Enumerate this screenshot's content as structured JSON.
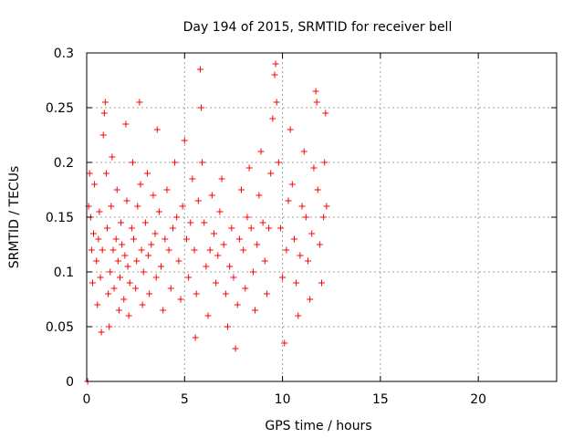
{
  "chart_data": {
    "type": "scatter",
    "title": "Day 194 of 2015, SRMTID for receiver bell",
    "xlabel": "GPS time / hours",
    "ylabel": "SRMTID / TECUs",
    "xlim": [
      0,
      24
    ],
    "ylim": [
      0,
      0.3
    ],
    "xticks": [
      0,
      5,
      10,
      15,
      20
    ],
    "xtick_labels": [
      "0",
      "5",
      "10",
      "15",
      "20"
    ],
    "yticks": [
      0,
      0.05,
      0.1,
      0.15,
      0.2,
      0.25,
      0.3
    ],
    "ytick_labels": [
      "0",
      "0.05",
      "0.1",
      "0.15",
      "0.2",
      "0.25",
      "0.3"
    ],
    "grid": true,
    "marker": "plus",
    "colors": {
      "series": "#ff0000",
      "grid": "#a0a0a0",
      "axis": "#000000"
    },
    "series": [
      {
        "points": [
          [
            0.05,
            0.0
          ],
          [
            0.1,
            0.16
          ],
          [
            0.15,
            0.19
          ],
          [
            0.2,
            0.15
          ],
          [
            0.25,
            0.12
          ],
          [
            0.3,
            0.09
          ],
          [
            0.35,
            0.135
          ],
          [
            0.4,
            0.18
          ],
          [
            0.5,
            0.11
          ],
          [
            0.55,
            0.07
          ],
          [
            0.6,
            0.13
          ],
          [
            0.65,
            0.155
          ],
          [
            0.7,
            0.095
          ],
          [
            0.75,
            0.045
          ],
          [
            0.8,
            0.12
          ],
          [
            0.85,
            0.225
          ],
          [
            0.9,
            0.245
          ],
          [
            0.95,
            0.255
          ],
          [
            1.0,
            0.19
          ],
          [
            1.05,
            0.14
          ],
          [
            1.1,
            0.08
          ],
          [
            1.15,
            0.05
          ],
          [
            1.2,
            0.1
          ],
          [
            1.25,
            0.16
          ],
          [
            1.3,
            0.205
          ],
          [
            1.35,
            0.12
          ],
          [
            1.4,
            0.085
          ],
          [
            1.5,
            0.13
          ],
          [
            1.55,
            0.175
          ],
          [
            1.6,
            0.11
          ],
          [
            1.65,
            0.065
          ],
          [
            1.7,
            0.095
          ],
          [
            1.75,
            0.145
          ],
          [
            1.8,
            0.125
          ],
          [
            1.9,
            0.075
          ],
          [
            1.95,
            0.115
          ],
          [
            2.0,
            0.235
          ],
          [
            2.05,
            0.165
          ],
          [
            2.1,
            0.105
          ],
          [
            2.15,
            0.06
          ],
          [
            2.2,
            0.09
          ],
          [
            2.3,
            0.14
          ],
          [
            2.35,
            0.2
          ],
          [
            2.4,
            0.13
          ],
          [
            2.5,
            0.085
          ],
          [
            2.55,
            0.11
          ],
          [
            2.6,
            0.16
          ],
          [
            2.7,
            0.255
          ],
          [
            2.75,
            0.18
          ],
          [
            2.8,
            0.12
          ],
          [
            2.85,
            0.07
          ],
          [
            2.9,
            0.1
          ],
          [
            3.0,
            0.145
          ],
          [
            3.1,
            0.19
          ],
          [
            3.15,
            0.115
          ],
          [
            3.2,
            0.08
          ],
          [
            3.3,
            0.125
          ],
          [
            3.4,
            0.17
          ],
          [
            3.5,
            0.135
          ],
          [
            3.55,
            0.095
          ],
          [
            3.6,
            0.23
          ],
          [
            3.7,
            0.155
          ],
          [
            3.8,
            0.105
          ],
          [
            3.9,
            0.065
          ],
          [
            4.0,
            0.13
          ],
          [
            4.1,
            0.175
          ],
          [
            4.2,
            0.12
          ],
          [
            4.3,
            0.085
          ],
          [
            4.4,
            0.14
          ],
          [
            4.5,
            0.2
          ],
          [
            4.6,
            0.15
          ],
          [
            4.7,
            0.11
          ],
          [
            4.8,
            0.075
          ],
          [
            4.9,
            0.16
          ],
          [
            5.0,
            0.22
          ],
          [
            5.1,
            0.13
          ],
          [
            5.2,
            0.095
          ],
          [
            5.3,
            0.145
          ],
          [
            5.4,
            0.185
          ],
          [
            5.5,
            0.12
          ],
          [
            5.55,
            0.04
          ],
          [
            5.6,
            0.08
          ],
          [
            5.7,
            0.165
          ],
          [
            5.8,
            0.285
          ],
          [
            5.85,
            0.25
          ],
          [
            5.9,
            0.2
          ],
          [
            6.0,
            0.145
          ],
          [
            6.1,
            0.105
          ],
          [
            6.2,
            0.06
          ],
          [
            6.3,
            0.12
          ],
          [
            6.4,
            0.17
          ],
          [
            6.5,
            0.135
          ],
          [
            6.6,
            0.09
          ],
          [
            6.7,
            0.115
          ],
          [
            6.8,
            0.155
          ],
          [
            6.9,
            0.185
          ],
          [
            7.0,
            0.125
          ],
          [
            7.1,
            0.08
          ],
          [
            7.2,
            0.05
          ],
          [
            7.3,
            0.105
          ],
          [
            7.4,
            0.14
          ],
          [
            7.5,
            0.095
          ],
          [
            7.6,
            0.03
          ],
          [
            7.7,
            0.07
          ],
          [
            7.8,
            0.13
          ],
          [
            7.9,
            0.175
          ],
          [
            8.0,
            0.12
          ],
          [
            8.1,
            0.085
          ],
          [
            8.2,
            0.15
          ],
          [
            8.3,
            0.195
          ],
          [
            8.4,
            0.14
          ],
          [
            8.5,
            0.1
          ],
          [
            8.6,
            0.065
          ],
          [
            8.7,
            0.125
          ],
          [
            8.8,
            0.17
          ],
          [
            8.9,
            0.21
          ],
          [
            9.0,
            0.145
          ],
          [
            9.1,
            0.11
          ],
          [
            9.2,
            0.08
          ],
          [
            9.3,
            0.14
          ],
          [
            9.4,
            0.19
          ],
          [
            9.5,
            0.24
          ],
          [
            9.6,
            0.28
          ],
          [
            9.65,
            0.29
          ],
          [
            9.7,
            0.255
          ],
          [
            9.8,
            0.2
          ],
          [
            9.9,
            0.14
          ],
          [
            10.0,
            0.095
          ],
          [
            10.1,
            0.035
          ],
          [
            10.2,
            0.12
          ],
          [
            10.3,
            0.165
          ],
          [
            10.4,
            0.23
          ],
          [
            10.5,
            0.18
          ],
          [
            10.6,
            0.13
          ],
          [
            10.7,
            0.09
          ],
          [
            10.8,
            0.06
          ],
          [
            10.9,
            0.115
          ],
          [
            11.0,
            0.16
          ],
          [
            11.1,
            0.21
          ],
          [
            11.2,
            0.15
          ],
          [
            11.3,
            0.11
          ],
          [
            11.4,
            0.075
          ],
          [
            11.5,
            0.135
          ],
          [
            11.6,
            0.195
          ],
          [
            11.7,
            0.265
          ],
          [
            11.75,
            0.255
          ],
          [
            11.8,
            0.175
          ],
          [
            11.9,
            0.125
          ],
          [
            12.0,
            0.09
          ],
          [
            12.1,
            0.15
          ],
          [
            12.15,
            0.2
          ],
          [
            12.2,
            0.245
          ],
          [
            12.25,
            0.16
          ]
        ]
      }
    ]
  }
}
